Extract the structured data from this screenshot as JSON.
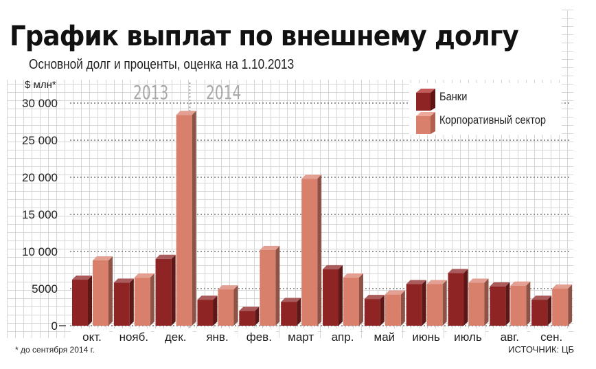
{
  "title": "График выплат по внешнему долгу",
  "subtitle": "Основной долг и проценты, оценка на 1.10.2013",
  "unit_label": "$ млн*",
  "year_labels": [
    "2013",
    "2014"
  ],
  "footnote": "* до сентября 2014 г.",
  "source": "ИСТОЧНИК: ЦБ",
  "colors": {
    "banks": "#8e2424",
    "corporate": "#d9806d",
    "grid": "#777777"
  },
  "chart_data": {
    "type": "bar",
    "title": "График выплат по внешнему долгу",
    "subtitle": "Основной долг и проценты, оценка на 1.10.2013",
    "ylabel": "$ млн*",
    "ylim": [
      0,
      30000
    ],
    "yticks": [
      0,
      5000,
      10000,
      15000,
      20000,
      25000,
      30000
    ],
    "ytick_labels": [
      "0",
      "5000",
      "10 000",
      "15 000",
      "20 000",
      "25 000",
      "30 000"
    ],
    "grid": true,
    "legend_position": "top-right",
    "categories": [
      "окт.",
      "нояб.",
      "дек.",
      "янв.",
      "фев.",
      "март",
      "апр.",
      "май",
      "июнь",
      "июль",
      "авг.",
      "сен."
    ],
    "series": [
      {
        "name": "Банки",
        "values": [
          6200,
          5800,
          9000,
          3500,
          2000,
          3200,
          7600,
          3600,
          5600,
          7100,
          5300,
          3500
        ]
      },
      {
        "name": "Корпоративный сектор",
        "values": [
          8800,
          6500,
          28400,
          4900,
          10200,
          19800,
          6500,
          4200,
          5600,
          5800,
          5400,
          5000
        ]
      }
    ]
  }
}
